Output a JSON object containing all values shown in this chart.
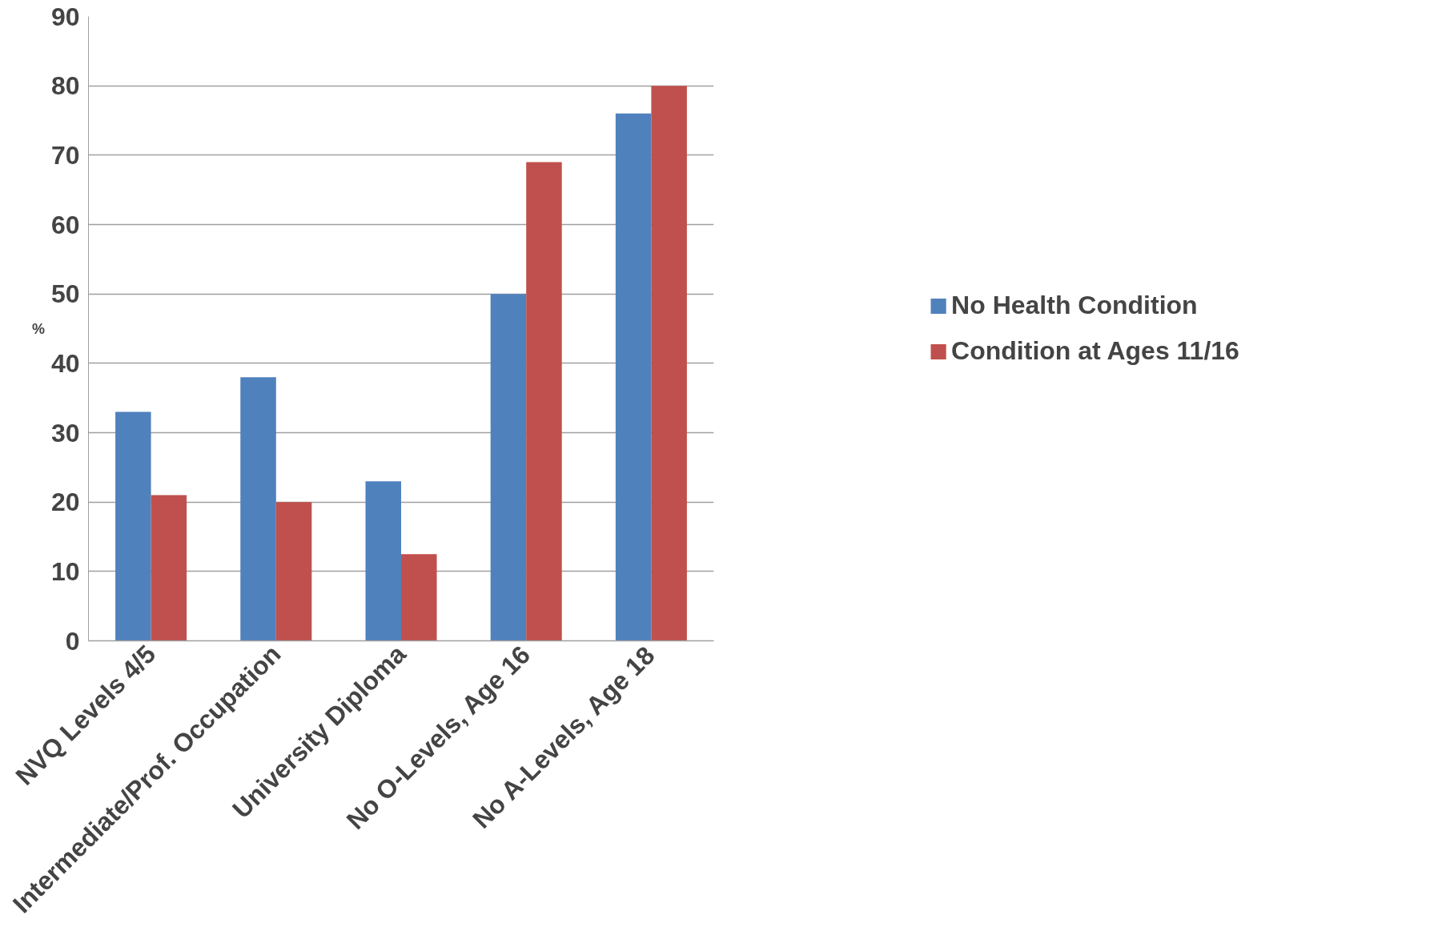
{
  "chart_data": {
    "type": "bar",
    "ylabel": "%",
    "categories": [
      "NVQ Levels 4/5",
      "Intermediate/Prof. Occupation",
      "University Diploma",
      "No O-Levels, Age 16",
      "No A-Levels, Age 18"
    ],
    "series": [
      {
        "name": "No Health Condition",
        "color": "#4f81bd",
        "values": [
          33,
          38,
          23,
          50,
          76
        ]
      },
      {
        "name": "Condition at Ages 11/16",
        "color": "#c0504d",
        "values": [
          21,
          20,
          12.5,
          69,
          80
        ]
      }
    ],
    "ylim": [
      0,
      90
    ],
    "yticks": [
      0,
      10,
      20,
      30,
      40,
      50,
      60,
      70,
      80,
      90
    ],
    "grid": "y",
    "legend": "right"
  }
}
